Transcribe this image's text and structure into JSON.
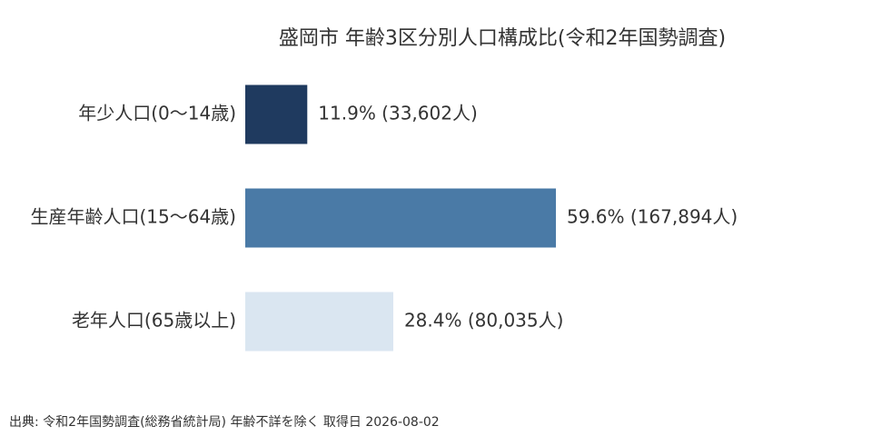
{
  "chart_data": {
    "type": "hbar",
    "title": "盛岡市 年齢3区分別人口構成比(令和2年国勢調査)",
    "categories": [
      "年少人口(0〜14歳)",
      "生産年齢人口(15〜64歳)",
      "老年人口(65歳以上)"
    ],
    "values": [
      11.9,
      59.6,
      28.4
    ],
    "value_labels": [
      "11.9% (33,602人)",
      "59.6% (167,894人)",
      "28.4% (80,035人)"
    ],
    "colors": [
      "#1f3a5f",
      "#4a7aa6",
      "#dae6f1"
    ],
    "source": "出典: 令和2年国勢調査(総務省統計局) 年齢不詳を除く 取得日 2026-08-02"
  }
}
